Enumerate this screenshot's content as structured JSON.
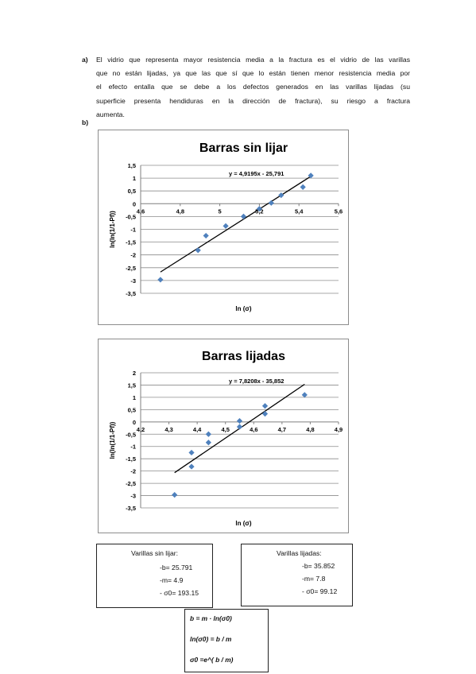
{
  "paragraph": {
    "label": "a)",
    "lines": [
      "El vidrio que representa mayor resistencia media a la fractura es el vidrio de las varillas",
      "que no están lijadas, ya que las que sí que lo están tienen menor resistencia media por",
      "el efecto entalla que se debe a los defectos generados en las varillas lijadas (su",
      "superficie presenta hendiduras en la dirección de fractura), su riesgo a fractura",
      "aumenta."
    ]
  },
  "section_b_label": "b)",
  "chart_data": [
    {
      "type": "scatter",
      "title": "Barras sin lijar",
      "xlabel": "ln (σ)",
      "ylabel": "ln(ln(1/1-Pf))",
      "xlim": [
        4.6,
        5.6
      ],
      "ylim": [
        -3.5,
        1.5
      ],
      "xticks": [
        "4,6",
        "4,8",
        "5",
        "5,2",
        "5,4",
        "5,6"
      ],
      "xtick_values": [
        4.6,
        4.8,
        5.0,
        5.2,
        5.4,
        5.6
      ],
      "yticks": [
        "1,5",
        "1",
        "0,5",
        "0",
        "-0,5",
        "-1",
        "-1,5",
        "-2",
        "-2,5",
        "-3",
        "-3,5"
      ],
      "ytick_values": [
        1.5,
        1,
        0.5,
        0,
        -0.5,
        -1,
        -1.5,
        -2,
        -2.5,
        -3,
        -3.5
      ],
      "grid": true,
      "marker_color": "#4f81bd",
      "points": [
        [
          4.7,
          -2.97
        ],
        [
          4.89,
          -1.82
        ],
        [
          4.93,
          -1.25
        ],
        [
          5.03,
          -0.87
        ],
        [
          5.12,
          -0.5
        ],
        [
          5.2,
          -0.2
        ],
        [
          5.26,
          0.03
        ],
        [
          5.31,
          0.33
        ],
        [
          5.42,
          0.65
        ],
        [
          5.46,
          1.1
        ]
      ],
      "trendline": {
        "label": "y = 4,9195x - 25,791",
        "slope": 4.9195,
        "intercept": -25.791,
        "x_range": [
          4.7,
          5.46
        ]
      }
    },
    {
      "type": "scatter",
      "title": "Barras lijadas",
      "xlabel": "ln (σ)",
      "ylabel": "ln(ln(1/1-Pf))",
      "xlim": [
        4.2,
        4.9
      ],
      "ylim": [
        -3.5,
        2
      ],
      "xticks": [
        "4,2",
        "4,3",
        "4,4",
        "4,5",
        "4,6",
        "4,7",
        "4,8",
        "4,9"
      ],
      "xtick_values": [
        4.2,
        4.3,
        4.4,
        4.5,
        4.6,
        4.7,
        4.8,
        4.9
      ],
      "yticks": [
        "2",
        "1,5",
        "1",
        "0,5",
        "0",
        "-0,5",
        "-1",
        "-1,5",
        "-2",
        "-2,5",
        "-3",
        "-3,5"
      ],
      "ytick_values": [
        2,
        1.5,
        1,
        0.5,
        0,
        -0.5,
        -1,
        -1.5,
        -2,
        -2.5,
        -3,
        -3.5
      ],
      "grid": true,
      "marker_color": "#4f81bd",
      "points": [
        [
          4.32,
          -2.97
        ],
        [
          4.38,
          -1.82
        ],
        [
          4.38,
          -1.25
        ],
        [
          4.44,
          -0.84
        ],
        [
          4.44,
          -0.5
        ],
        [
          4.55,
          -0.2
        ],
        [
          4.55,
          0.04
        ],
        [
          4.64,
          0.33
        ],
        [
          4.64,
          0.65
        ],
        [
          4.78,
          1.1
        ]
      ],
      "trendline": {
        "label": "y = 7,8208x - 35,852",
        "slope": 7.8208,
        "intercept": -35.852,
        "x_range": [
          4.32,
          4.78
        ]
      }
    }
  ],
  "box_sin_lijar": {
    "title": "Varillas sin lijar:",
    "line1": "-b= 25.791",
    "line2": "-m= 4.9",
    "line3": "- σ0= 193.15"
  },
  "box_lijadas": {
    "title": "Varillas lijadas:",
    "line1": "-b= 35.852",
    "line2": "-m= 7.8",
    "line3": "- σ0= 99.12"
  },
  "formulas": {
    "f1": "b = m · ln(σ0)",
    "f2": "ln(σ0) = b / m",
    "f3": "σ0 =e^( b / m)"
  }
}
